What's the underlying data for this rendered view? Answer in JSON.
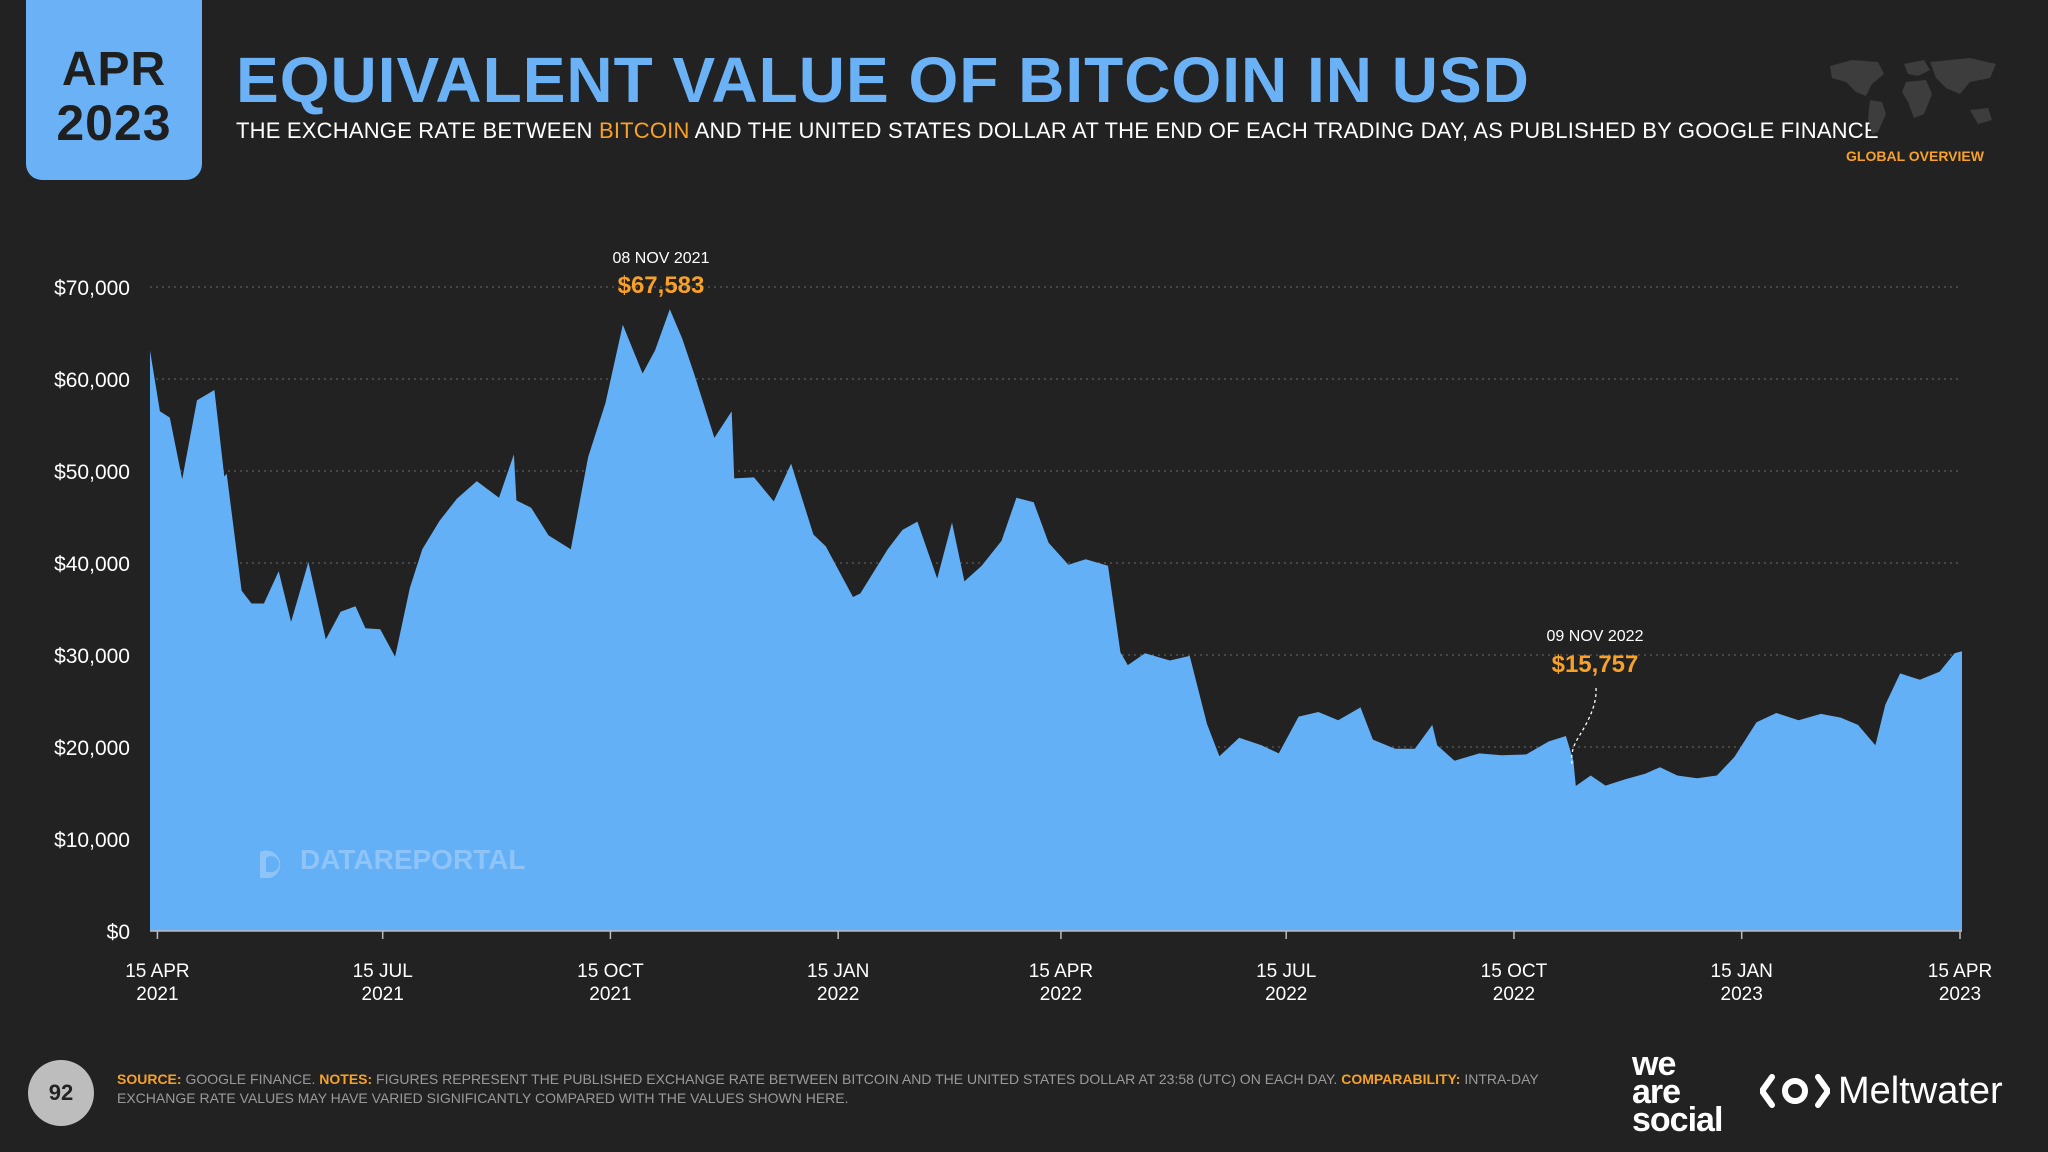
{
  "badge": {
    "month": "APR",
    "year": "2023"
  },
  "header": {
    "title": "EQUIVALENT VALUE OF BITCOIN IN USD",
    "subtitle_pre": "THE EXCHANGE RATE BETWEEN ",
    "subtitle_highlight": "BITCOIN",
    "subtitle_post": " AND THE UNITED STATES DOLLAR AT THE END OF EACH TRADING DAY, AS PUBLISHED BY GOOGLE FINANCE",
    "global_label": "GLOBAL OVERVIEW"
  },
  "watermark": "DATAREPORTAL",
  "footer": {
    "page_number": "92",
    "source_label": "SOURCE:",
    "source_text": " GOOGLE FINANCE. ",
    "notes_label": "NOTES:",
    "notes_text": " FIGURES REPRESENT THE PUBLISHED EXCHANGE RATE BETWEEN BITCOIN AND THE UNITED STATES DOLLAR AT 23:58 (UTC) ON EACH DAY. ",
    "comparability_label": "COMPARABILITY:",
    "comparability_text": " INTRA-DAY EXCHANGE RATE VALUES MAY HAVE VARIED SIGNIFICANTLY COMPARED WITH THE VALUES SHOWN HERE."
  },
  "logos": {
    "we_are_social": [
      "we",
      "are",
      "social"
    ],
    "meltwater": "Meltwater"
  },
  "colors": {
    "background": "#222222",
    "accent_blue": "#6ab2f5",
    "highlight_orange": "#f7a128"
  },
  "chart_data": {
    "type": "area",
    "ylim": [
      0,
      70000
    ],
    "y_ticks": [
      0,
      10000,
      20000,
      30000,
      40000,
      50000,
      60000,
      70000
    ],
    "y_tick_labels": [
      "$0",
      "$10,000",
      "$20,000",
      "$30,000",
      "$40,000",
      "$50,000",
      "$60,000",
      "$70,000"
    ],
    "x_range": [
      "2021-04-12",
      "2023-04-14"
    ],
    "x_ticks": [
      "2021-04-15",
      "2021-07-15",
      "2021-10-15",
      "2022-01-15",
      "2022-04-15",
      "2022-07-15",
      "2022-10-15",
      "2023-01-15",
      "2023-04-15"
    ],
    "x_tick_labels": [
      [
        "15 APR",
        "2021"
      ],
      [
        "15 JUL",
        "2021"
      ],
      [
        "15 OCT",
        "2021"
      ],
      [
        "15 JAN",
        "2022"
      ],
      [
        "15 APR",
        "2022"
      ],
      [
        "15 JUL",
        "2022"
      ],
      [
        "15 OCT",
        "2022"
      ],
      [
        "15 JAN",
        "2023"
      ],
      [
        "15 APR",
        "2023"
      ]
    ],
    "grid": true,
    "series": [
      {
        "x": [
          "2021-04-12",
          "2021-04-16",
          "2021-04-20",
          "2021-04-25",
          "2021-05-01",
          "2021-05-08",
          "2021-05-12",
          "2021-05-13",
          "2021-05-19",
          "2021-05-23",
          "2021-05-28",
          "2021-06-03",
          "2021-06-08",
          "2021-06-15",
          "2021-06-22",
          "2021-06-28",
          "2021-07-04",
          "2021-07-08",
          "2021-07-14",
          "2021-07-20",
          "2021-07-26",
          "2021-07-31",
          "2021-08-07",
          "2021-08-14",
          "2021-08-22",
          "2021-08-31",
          "2021-09-06",
          "2021-09-07",
          "2021-09-13",
          "2021-09-20",
          "2021-09-29",
          "2021-10-06",
          "2021-10-13",
          "2021-10-20",
          "2021-10-28",
          "2021-11-02",
          "2021-11-08",
          "2021-11-13",
          "2021-11-18",
          "2021-11-26",
          "2021-12-03",
          "2021-12-04",
          "2021-12-12",
          "2021-12-20",
          "2021-12-27",
          "2022-01-05",
          "2022-01-10",
          "2022-01-21",
          "2022-01-24",
          "2022-02-04",
          "2022-02-10",
          "2022-02-16",
          "2022-02-24",
          "2022-03-02",
          "2022-03-07",
          "2022-03-14",
          "2022-03-22",
          "2022-03-28",
          "2022-04-04",
          "2022-04-10",
          "2022-04-18",
          "2022-04-25",
          "2022-05-04",
          "2022-05-09",
          "2022-05-12",
          "2022-05-19",
          "2022-05-29",
          "2022-06-06",
          "2022-06-13",
          "2022-06-18",
          "2022-06-26",
          "2022-07-05",
          "2022-07-12",
          "2022-07-20",
          "2022-07-28",
          "2022-08-05",
          "2022-08-14",
          "2022-08-19",
          "2022-08-28",
          "2022-09-05",
          "2022-09-12",
          "2022-09-14",
          "2022-09-21",
          "2022-10-01",
          "2022-10-10",
          "2022-10-20",
          "2022-10-29",
          "2022-11-05",
          "2022-11-08",
          "2022-11-09",
          "2022-11-15",
          "2022-11-21",
          "2022-11-29",
          "2022-12-07",
          "2022-12-13",
          "2022-12-20",
          "2022-12-28",
          "2023-01-05",
          "2023-01-12",
          "2023-01-21",
          "2023-01-29",
          "2023-02-07",
          "2023-02-16",
          "2023-02-24",
          "2023-03-03",
          "2023-03-10",
          "2023-03-14",
          "2023-03-20",
          "2023-03-28",
          "2023-04-05",
          "2023-04-11",
          "2023-04-14"
        ],
        "values": [
          63100,
          56500,
          55800,
          49100,
          57700,
          58800,
          49400,
          49700,
          37000,
          35600,
          35600,
          39100,
          33600,
          40100,
          31700,
          34700,
          35300,
          32900,
          32800,
          29800,
          37300,
          41500,
          44600,
          47000,
          48900,
          47100,
          51800,
          46800,
          46000,
          43000,
          41500,
          51500,
          57400,
          65900,
          60600,
          63100,
          67583,
          64400,
          60400,
          53600,
          56500,
          49200,
          49300,
          46700,
          50800,
          43100,
          41800,
          36300,
          36700,
          41500,
          43600,
          44500,
          38300,
          44400,
          38000,
          39700,
          42400,
          47100,
          46600,
          42200,
          39800,
          40400,
          39700,
          30300,
          28900,
          30200,
          29400,
          29900,
          22500,
          19000,
          21000,
          20200,
          19300,
          23300,
          23800,
          22900,
          24300,
          20800,
          19800,
          19800,
          22400,
          20200,
          18500,
          19300,
          19100,
          19200,
          20600,
          21200,
          18500,
          15757,
          16900,
          15800,
          16500,
          17100,
          17800,
          16900,
          16600,
          16900,
          18900,
          22700,
          23700,
          22900,
          23600,
          23200,
          22400,
          20200,
          24600,
          28000,
          27300,
          28200,
          30200,
          30400
        ]
      }
    ],
    "annotations": [
      {
        "date": "08 NOV 2021",
        "value": "$67,583"
      },
      {
        "date": "09 NOV 2022",
        "value": "$15,757"
      }
    ]
  }
}
